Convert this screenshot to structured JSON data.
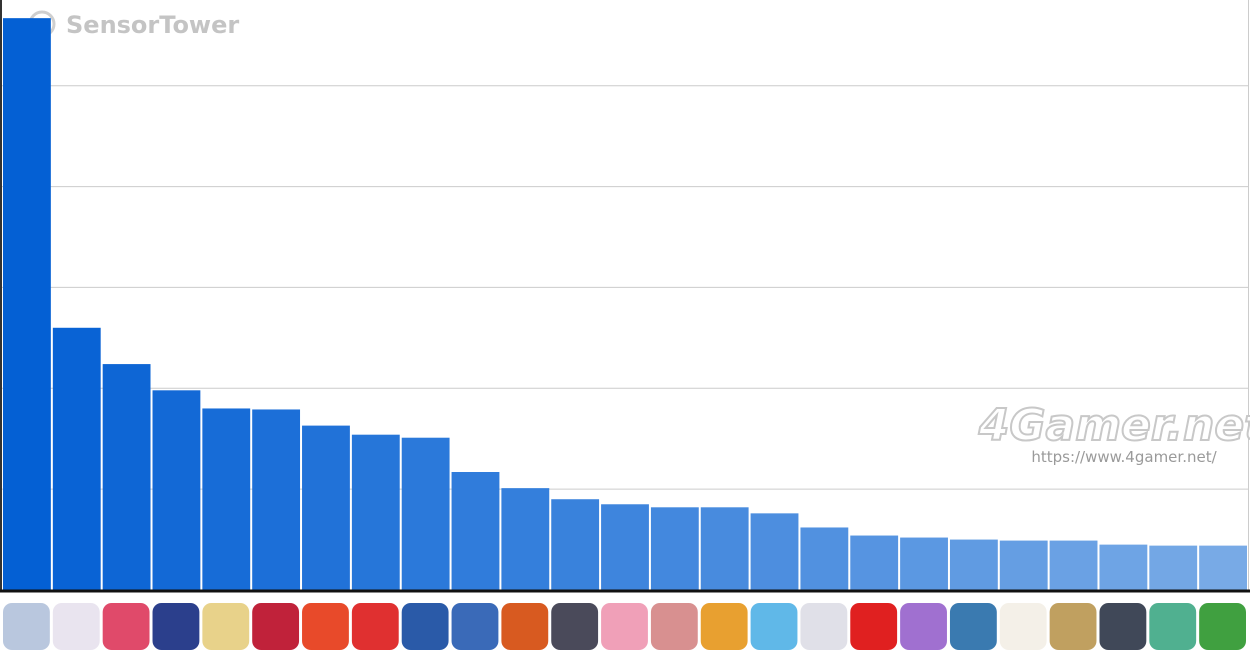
{
  "chart_data": {
    "type": "bar",
    "annotations": [
      "SensorTower",
      "4Gamer.net",
      "https://www.4gamer.net/"
    ],
    "categories": [
      null,
      null,
      null,
      null,
      null,
      null,
      null,
      null,
      null,
      null,
      null,
      null,
      null,
      null,
      null,
      null,
      null,
      null,
      null,
      null,
      null,
      null,
      null,
      null,
      null
    ],
    "values": [
      5.67,
      2.6,
      2.24,
      1.98,
      1.8,
      1.79,
      1.63,
      1.54,
      1.51,
      1.17,
      1.01,
      0.9,
      0.85,
      0.82,
      0.82,
      0.76,
      0.62,
      0.54,
      0.52,
      0.5,
      0.49,
      0.49,
      0.45,
      0.44,
      0.44
    ],
    "colors": [
      "#0460d4",
      "#0963d5",
      "#0e66d5",
      "#1369d6",
      "#176cd7",
      "#1c6fd8",
      "#2172d8",
      "#2676d9",
      "#2b79da",
      "#307cdb",
      "#347fdc",
      "#3982dc",
      "#3e85dd",
      "#4388de",
      "#488bde",
      "#4d8edf",
      "#5191e0",
      "#5694e1",
      "#5b98e2",
      "#609be2",
      "#659ee3",
      "#6aa1e4",
      "#6ea4e5",
      "#73a7e5",
      "#78aae6"
    ],
    "ylim": [
      0,
      5.85
    ],
    "yticks": [
      1,
      2,
      3,
      4,
      5
    ],
    "grid": true
  }
}
